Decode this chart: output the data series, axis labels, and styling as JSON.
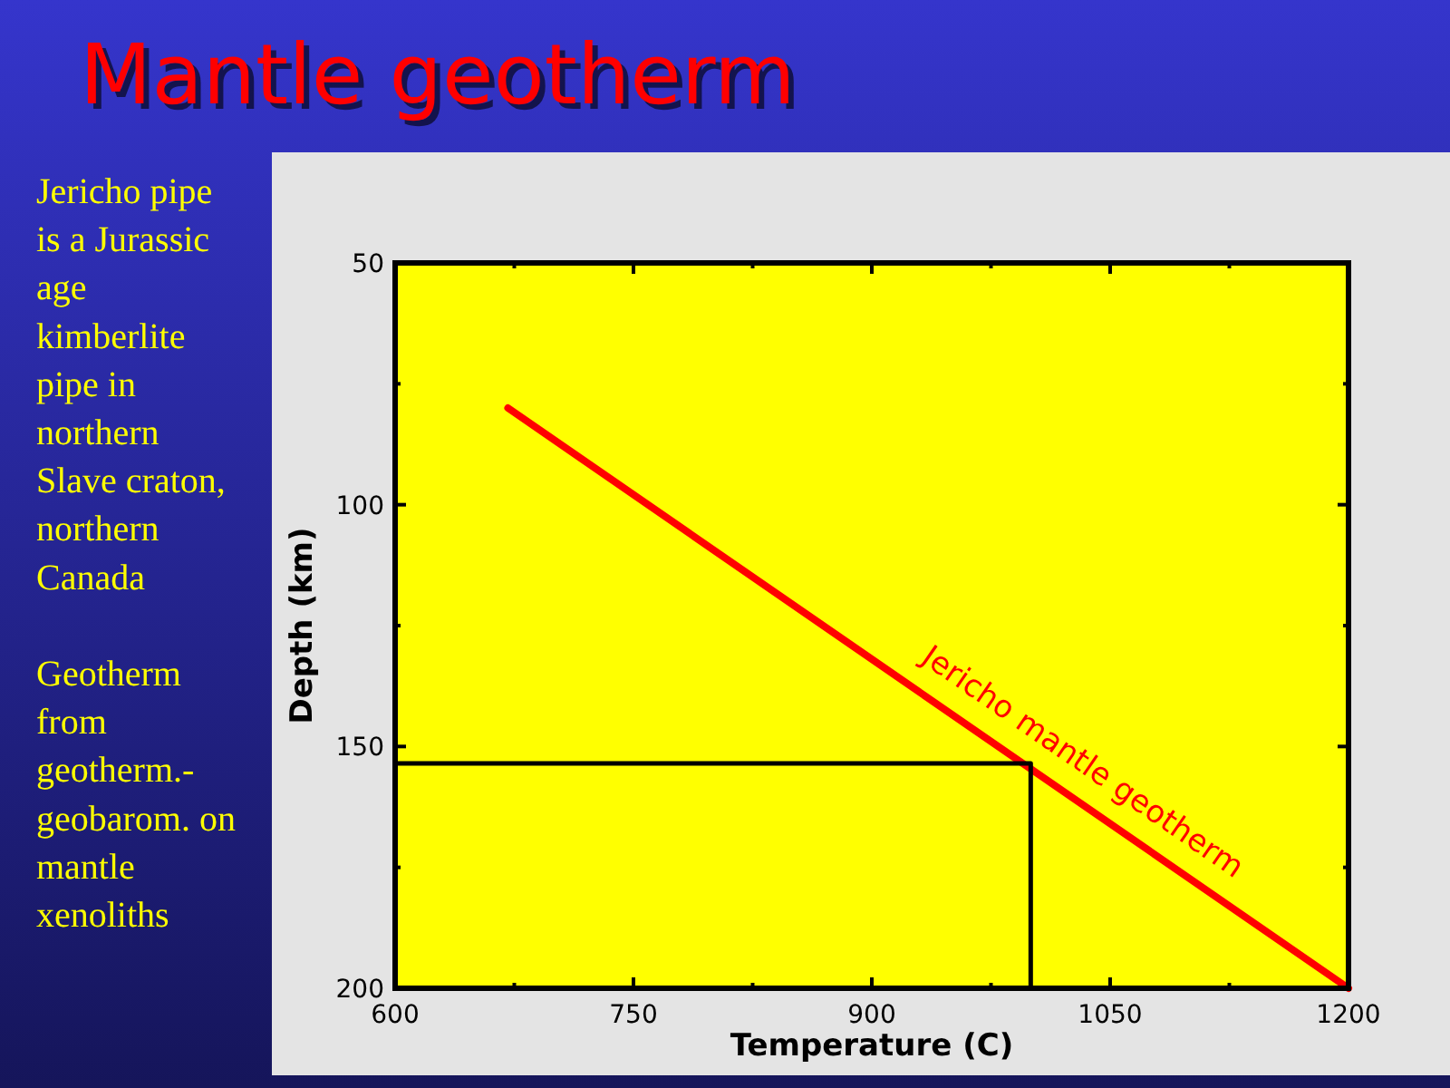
{
  "chart_data": {
    "type": "line",
    "title": "Mantle geotherm",
    "xlabel": "Temperature (C)",
    "ylabel": "Depth (km)",
    "xlim": [
      600,
      1200
    ],
    "xticks": [
      600,
      {
        "value": 675,
        "label": null
      },
      750,
      {
        "value": 825,
        "label": null
      },
      900,
      {
        "value": 975,
        "label": null
      },
      1050,
      {
        "value": 1125,
        "label": null
      },
      1200
    ],
    "ylim": [
      200,
      50
    ],
    "yticks": [
      50,
      {
        "value": 75,
        "label": null
      },
      100,
      {
        "value": 125,
        "label": null
      },
      150,
      {
        "value": 175,
        "label": null
      },
      200
    ],
    "series": [
      {
        "name": "Jericho mantle geotherm",
        "color": "#ff0000",
        "x": [
          671,
          1200
        ],
        "values": [
          80,
          200
        ]
      },
      {
        "color": "#000000",
        "x": [
          600,
          1000,
          1000
        ],
        "values": [
          153.5,
          153.5,
          200
        ]
      }
    ],
    "annotations": [
      "Jericho pipe\nis a Jurassic\nage\nkimberlite\npipe in\nnorthern\nSlave craton,\nnorthern\nCanada",
      "Geotherm\nfrom\ngeotherm.-\ngeobarom. on\nmantle\nxenoliths"
    ]
  }
}
